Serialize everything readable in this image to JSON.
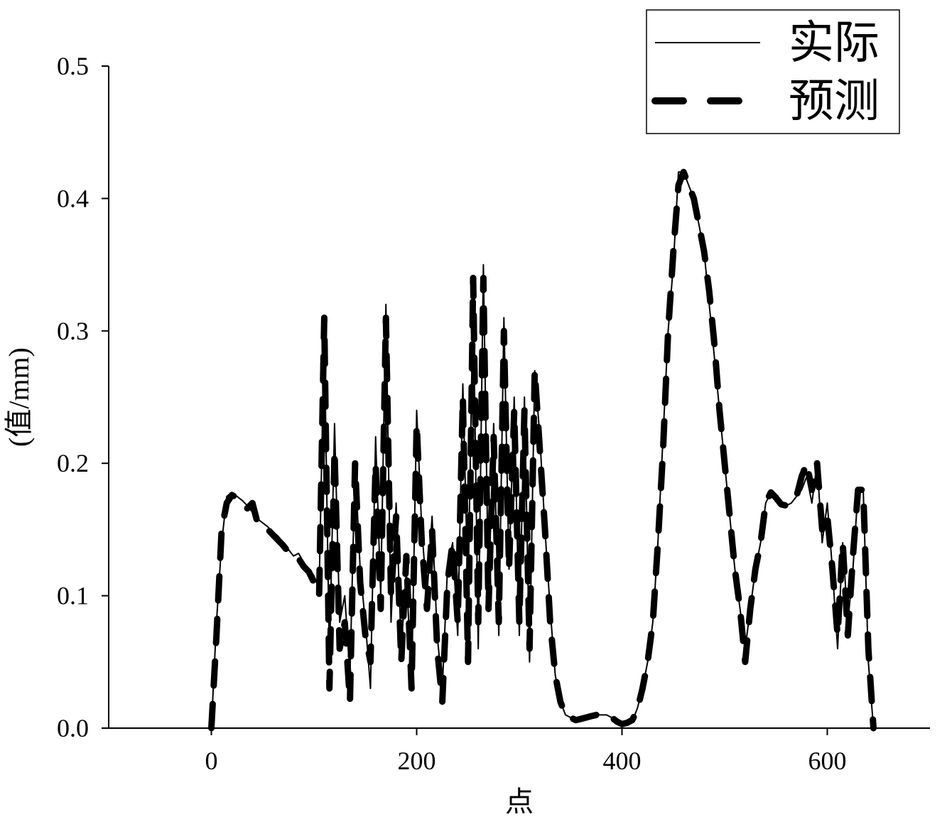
{
  "chart_data": {
    "type": "line",
    "x_label": "点",
    "y_label": "(值/mm)",
    "xlim": [
      -100,
      700
    ],
    "xticks": [
      0,
      200,
      400,
      600
    ],
    "ylim": [
      0,
      0.5
    ],
    "yticks": [
      {
        "value": 0,
        "label": "0.0"
      },
      0.1,
      0.2,
      0.3,
      0.4,
      0.5
    ],
    "legend": "upper right",
    "x": [
      0,
      5,
      10,
      15,
      20,
      25,
      30,
      35,
      40,
      45,
      50,
      55,
      60,
      65,
      70,
      75,
      80,
      85,
      90,
      95,
      100,
      105,
      110,
      115,
      120,
      125,
      130,
      135,
      140,
      145,
      150,
      155,
      160,
      165,
      170,
      175,
      180,
      185,
      190,
      195,
      200,
      205,
      210,
      215,
      220,
      225,
      230,
      235,
      240,
      245,
      250,
      255,
      260,
      265,
      270,
      275,
      280,
      285,
      290,
      295,
      300,
      305,
      310,
      315,
      320,
      325,
      330,
      335,
      340,
      345,
      350,
      355,
      360,
      365,
      370,
      375,
      380,
      385,
      390,
      395,
      400,
      405,
      410,
      415,
      420,
      425,
      430,
      435,
      440,
      445,
      450,
      455,
      460,
      465,
      470,
      475,
      480,
      485,
      490,
      495,
      500,
      505,
      510,
      515,
      520,
      525,
      530,
      535,
      540,
      545,
      550,
      555,
      560,
      565,
      570,
      575,
      580,
      585,
      590,
      595,
      600,
      605,
      610,
      615,
      620,
      625,
      630,
      635,
      640,
      645
    ],
    "series": [
      {
        "name": "实际",
        "color": "#000000",
        "style": "solid",
        "values": [
          0,
          0.08,
          0.14,
          0.175,
          0.178,
          0.175,
          0.172,
          0.168,
          0.163,
          0.158,
          0.155,
          0.152,
          0.148,
          0.145,
          0.14,
          0.135,
          0.13,
          0.132,
          0.125,
          0.12,
          0.115,
          0.105,
          0.3,
          0.05,
          0.23,
          0.08,
          0.1,
          0.04,
          0.2,
          0.12,
          0.08,
          0.03,
          0.22,
          0.1,
          0.32,
          0.08,
          0.17,
          0.06,
          0.12,
          0.03,
          0.24,
          0.15,
          0.1,
          0.16,
          0.07,
          0.03,
          0.12,
          0.14,
          0.07,
          0.26,
          0.1,
          0.33,
          0.06,
          0.35,
          0.1,
          0.23,
          0.07,
          0.31,
          0.12,
          0.25,
          0.07,
          0.25,
          0.05,
          0.27,
          0.22,
          0.15,
          0.09,
          0.04,
          0.02,
          0.01,
          0.008,
          0.005,
          0.006,
          0.008,
          0.009,
          0.01,
          0.01,
          0.01,
          0.008,
          0.006,
          0.003,
          0.003,
          0.005,
          0.015,
          0.03,
          0.05,
          0.08,
          0.14,
          0.22,
          0.3,
          0.35,
          0.42,
          0.42,
          0.41,
          0.4,
          0.38,
          0.36,
          0.32,
          0.28,
          0.24,
          0.2,
          0.16,
          0.12,
          0.09,
          0.06,
          0.09,
          0.12,
          0.14,
          0.17,
          0.178,
          0.175,
          0.17,
          0.168,
          0.17,
          0.175,
          0.18,
          0.19,
          0.17,
          0.2,
          0.14,
          0.17,
          0.12,
          0.06,
          0.14,
          0.08,
          0.12,
          0.18,
          0.18,
          0.05,
          0
        ]
      },
      {
        "name": "预测",
        "color": "#000000",
        "style": "dashed",
        "values": [
          0,
          0.07,
          0.15,
          0.17,
          0.176,
          0.174,
          0.17,
          0.166,
          0.17,
          0.155,
          0.153,
          0.15,
          0.146,
          0.142,
          0.138,
          0.133,
          0.13,
          0.128,
          0.122,
          0.118,
          0.11,
          0.1,
          0.31,
          0.03,
          0.21,
          0.06,
          0.08,
          0.02,
          0.2,
          0.11,
          0.07,
          0.05,
          0.2,
          0.09,
          0.31,
          0.1,
          0.16,
          0.05,
          0.13,
          0.03,
          0.23,
          0.14,
          0.09,
          0.15,
          0.06,
          0.02,
          0.11,
          0.14,
          0.08,
          0.25,
          0.05,
          0.34,
          0.08,
          0.34,
          0.09,
          0.22,
          0.08,
          0.3,
          0.12,
          0.24,
          0.08,
          0.24,
          0.06,
          0.27,
          0.21,
          0.15,
          0.08,
          0.04,
          0.02,
          0.01,
          0.008,
          0.006,
          0.007,
          0.008,
          0.009,
          0.01,
          0.01,
          0.009,
          0.008,
          0.005,
          0.003,
          0.004,
          0.006,
          0.014,
          0.03,
          0.05,
          0.08,
          0.14,
          0.21,
          0.3,
          0.36,
          0.41,
          0.42,
          0.41,
          0.4,
          0.38,
          0.36,
          0.33,
          0.29,
          0.24,
          0.2,
          0.16,
          0.12,
          0.09,
          0.05,
          0.09,
          0.12,
          0.14,
          0.17,
          0.178,
          0.174,
          0.169,
          0.168,
          0.17,
          0.175,
          0.19,
          0.2,
          0.18,
          0.2,
          0.15,
          0.16,
          0.12,
          0.07,
          0.14,
          0.07,
          0.13,
          0.18,
          0.18,
          0.06,
          0
        ]
      }
    ]
  }
}
